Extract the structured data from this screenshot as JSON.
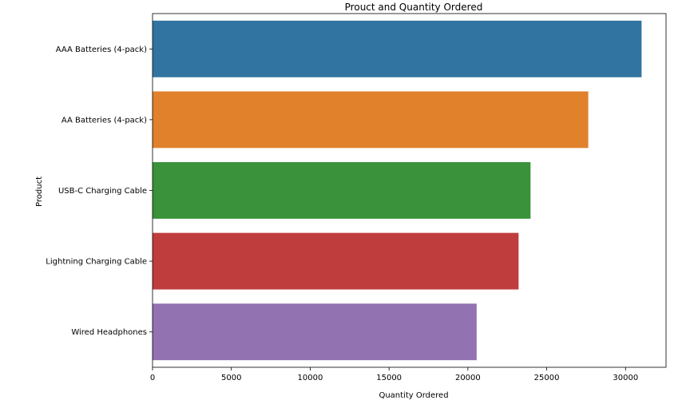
{
  "chart_data": {
    "type": "bar",
    "orientation": "horizontal",
    "title": "Prouct and Quantity Ordered",
    "xlabel": "Quantity Ordered",
    "ylabel": "Product",
    "categories": [
      "AAA Batteries (4-pack)",
      "AA Batteries (4-pack)",
      "USB-C Charging Cable",
      "Lightning Charging Cable",
      "Wired Headphones"
    ],
    "values": [
      31017,
      27635,
      23975,
      23217,
      20557
    ],
    "colors": [
      "#3274a1",
      "#e1812c",
      "#3a923a",
      "#c03d3e",
      "#9372b2"
    ],
    "xlim": [
      0,
      32568
    ],
    "xticks": [
      0,
      5000,
      10000,
      15000,
      20000,
      25000,
      30000
    ],
    "xtick_labels": [
      "0",
      "5000",
      "10000",
      "15000",
      "20000",
      "25000",
      "30000"
    ],
    "grid": false,
    "legend": "none"
  }
}
